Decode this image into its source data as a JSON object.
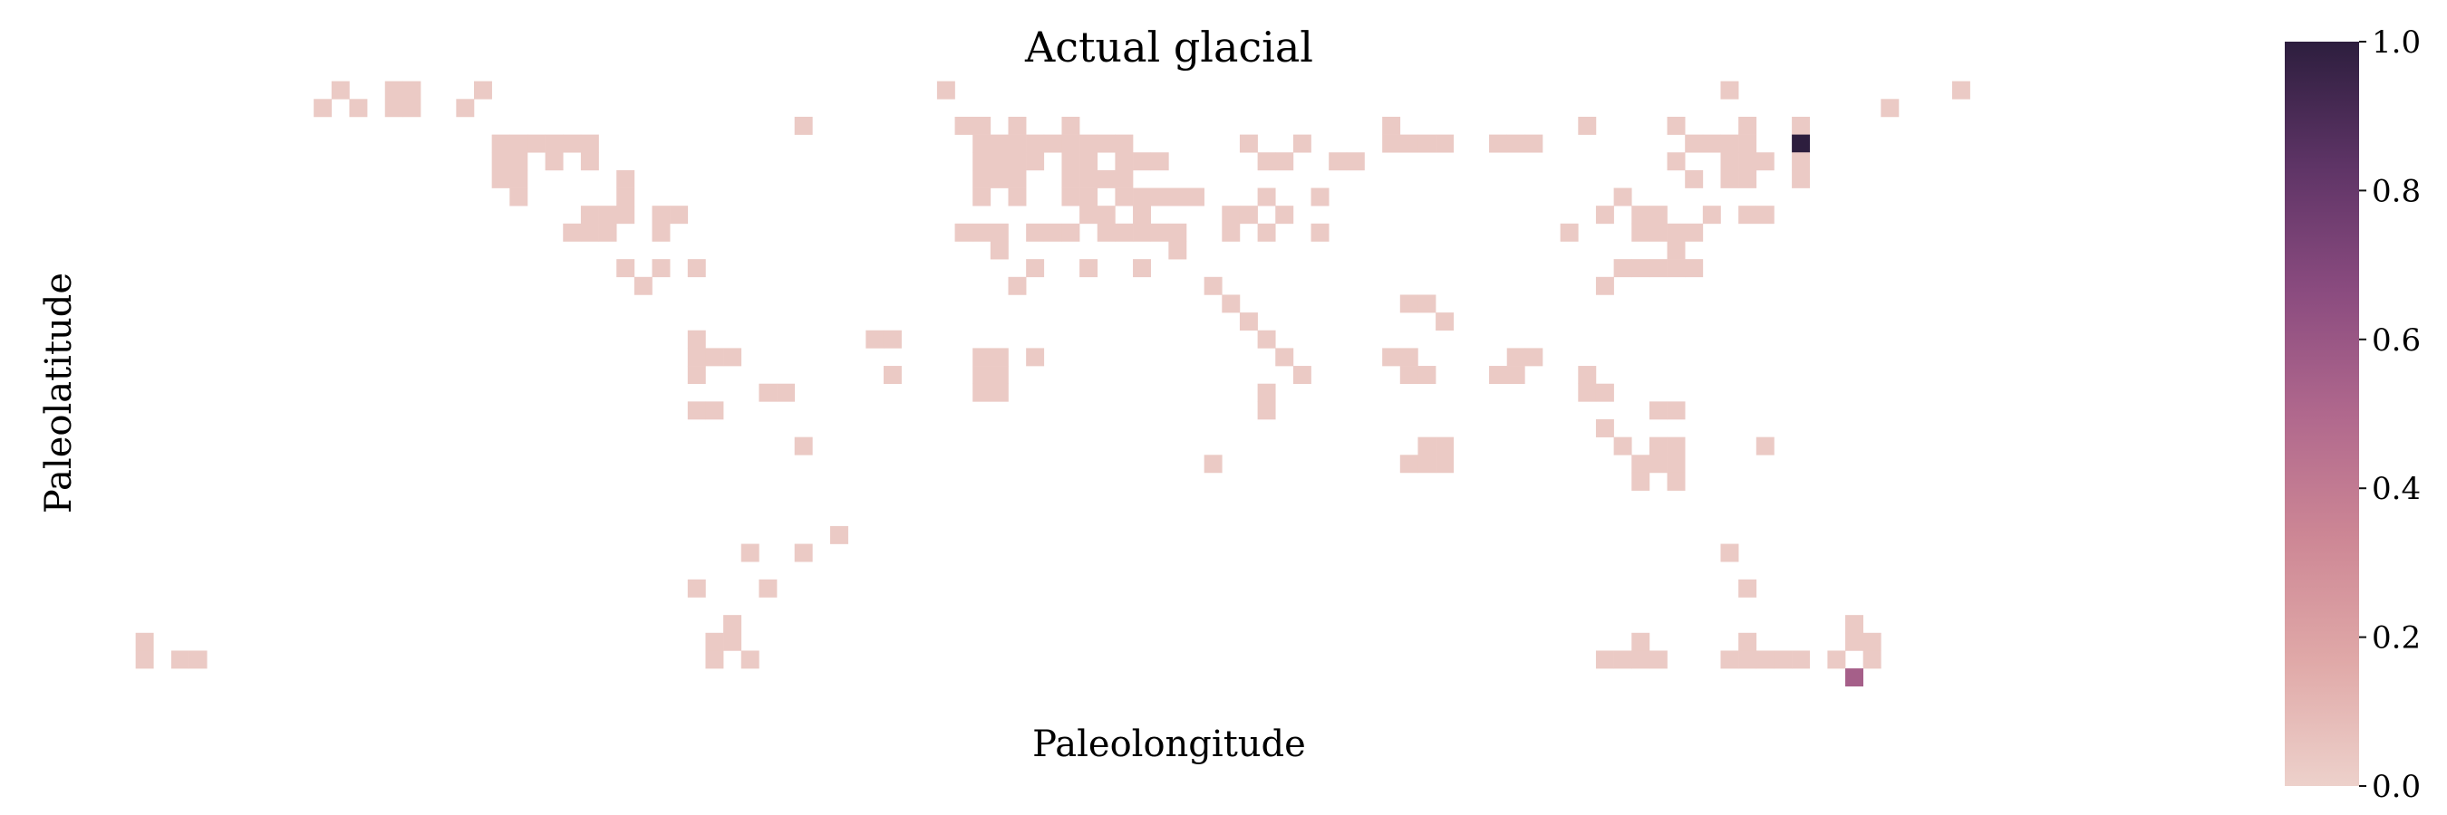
{
  "chart_data": {
    "type": "heatmap",
    "title": "Actual glacial",
    "xlabel": "Paleolongitude",
    "ylabel": "Paleolatitude",
    "n_cols": 120,
    "n_rows": 36,
    "colorbar": {
      "min": 0.0,
      "max": 1.0,
      "ticks": [
        "0.0",
        "0.2",
        "0.4",
        "0.6",
        "0.8",
        "1.0"
      ],
      "colors": [
        "#edd1cb",
        "#e0a9a8",
        "#cd8795",
        "#b0688d",
        "#8a4b7f",
        "#5e3466",
        "#2d1e3e"
      ]
    },
    "cells": [
      [
        1,
        12,
        0.03
      ],
      [
        1,
        15,
        0.03
      ],
      [
        1,
        16,
        0.03
      ],
      [
        1,
        20,
        0.03
      ],
      [
        1,
        46,
        0.03
      ],
      [
        1,
        90,
        0.03
      ],
      [
        1,
        103,
        0.03
      ],
      [
        2,
        11,
        0.03
      ],
      [
        2,
        13,
        0.03
      ],
      [
        2,
        15,
        0.03
      ],
      [
        2,
        16,
        0.03
      ],
      [
        2,
        19,
        0.03
      ],
      [
        2,
        99,
        0.03
      ],
      [
        3,
        38,
        0.03
      ],
      [
        3,
        47,
        0.03
      ],
      [
        3,
        48,
        0.03
      ],
      [
        3,
        50,
        0.03
      ],
      [
        3,
        53,
        0.03
      ],
      [
        3,
        71,
        0.03
      ],
      [
        3,
        82,
        0.03
      ],
      [
        3,
        87,
        0.03
      ],
      [
        3,
        91,
        0.03
      ],
      [
        3,
        94,
        0.03
      ],
      [
        4,
        21,
        0.03
      ],
      [
        4,
        22,
        0.03
      ],
      [
        4,
        23,
        0.03
      ],
      [
        4,
        24,
        0.03
      ],
      [
        4,
        25,
        0.03
      ],
      [
        4,
        26,
        0.03
      ],
      [
        4,
        48,
        0.03
      ],
      [
        4,
        49,
        0.03
      ],
      [
        4,
        50,
        0.03
      ],
      [
        4,
        51,
        0.03
      ],
      [
        4,
        52,
        0.03
      ],
      [
        4,
        53,
        0.03
      ],
      [
        4,
        54,
        0.03
      ],
      [
        4,
        55,
        0.03
      ],
      [
        4,
        56,
        0.03
      ],
      [
        4,
        63,
        0.03
      ],
      [
        4,
        66,
        0.03
      ],
      [
        4,
        71,
        0.03
      ],
      [
        4,
        72,
        0.03
      ],
      [
        4,
        73,
        0.03
      ],
      [
        4,
        74,
        0.03
      ],
      [
        4,
        77,
        0.03
      ],
      [
        4,
        78,
        0.03
      ],
      [
        4,
        79,
        0.03
      ],
      [
        4,
        88,
        0.03
      ],
      [
        4,
        89,
        0.03
      ],
      [
        4,
        90,
        0.03
      ],
      [
        4,
        91,
        0.03
      ],
      [
        4,
        94,
        1.0
      ],
      [
        5,
        21,
        0.03
      ],
      [
        5,
        22,
        0.03
      ],
      [
        5,
        24,
        0.03
      ],
      [
        5,
        26,
        0.03
      ],
      [
        5,
        48,
        0.03
      ],
      [
        5,
        49,
        0.03
      ],
      [
        5,
        50,
        0.03
      ],
      [
        5,
        51,
        0.03
      ],
      [
        5,
        53,
        0.03
      ],
      [
        5,
        54,
        0.03
      ],
      [
        5,
        56,
        0.03
      ],
      [
        5,
        57,
        0.03
      ],
      [
        5,
        58,
        0.03
      ],
      [
        5,
        64,
        0.03
      ],
      [
        5,
        65,
        0.03
      ],
      [
        5,
        68,
        0.03
      ],
      [
        5,
        69,
        0.03
      ],
      [
        5,
        87,
        0.03
      ],
      [
        5,
        90,
        0.03
      ],
      [
        5,
        91,
        0.03
      ],
      [
        5,
        92,
        0.03
      ],
      [
        5,
        94,
        0.03
      ],
      [
        6,
        21,
        0.03
      ],
      [
        6,
        22,
        0.03
      ],
      [
        6,
        28,
        0.03
      ],
      [
        6,
        48,
        0.03
      ],
      [
        6,
        49,
        0.03
      ],
      [
        6,
        50,
        0.03
      ],
      [
        6,
        53,
        0.03
      ],
      [
        6,
        54,
        0.03
      ],
      [
        6,
        55,
        0.03
      ],
      [
        6,
        56,
        0.03
      ],
      [
        6,
        88,
        0.03
      ],
      [
        6,
        90,
        0.03
      ],
      [
        6,
        91,
        0.03
      ],
      [
        6,
        94,
        0.03
      ],
      [
        7,
        22,
        0.03
      ],
      [
        7,
        28,
        0.03
      ],
      [
        7,
        48,
        0.03
      ],
      [
        7,
        50,
        0.03
      ],
      [
        7,
        53,
        0.03
      ],
      [
        7,
        54,
        0.03
      ],
      [
        7,
        56,
        0.03
      ],
      [
        7,
        57,
        0.03
      ],
      [
        7,
        58,
        0.03
      ],
      [
        7,
        59,
        0.03
      ],
      [
        7,
        60,
        0.03
      ],
      [
        7,
        64,
        0.03
      ],
      [
        7,
        67,
        0.03
      ],
      [
        7,
        84,
        0.03
      ],
      [
        8,
        26,
        0.03
      ],
      [
        8,
        27,
        0.03
      ],
      [
        8,
        28,
        0.03
      ],
      [
        8,
        30,
        0.03
      ],
      [
        8,
        31,
        0.03
      ],
      [
        8,
        54,
        0.03
      ],
      [
        8,
        55,
        0.03
      ],
      [
        8,
        57,
        0.03
      ],
      [
        8,
        62,
        0.03
      ],
      [
        8,
        63,
        0.03
      ],
      [
        8,
        65,
        0.03
      ],
      [
        8,
        83,
        0.03
      ],
      [
        8,
        85,
        0.03
      ],
      [
        8,
        86,
        0.03
      ],
      [
        8,
        89,
        0.03
      ],
      [
        8,
        91,
        0.03
      ],
      [
        8,
        92,
        0.03
      ],
      [
        9,
        25,
        0.03
      ],
      [
        9,
        26,
        0.03
      ],
      [
        9,
        27,
        0.03
      ],
      [
        9,
        30,
        0.03
      ],
      [
        9,
        47,
        0.03
      ],
      [
        9,
        48,
        0.03
      ],
      [
        9,
        49,
        0.03
      ],
      [
        9,
        51,
        0.03
      ],
      [
        9,
        52,
        0.03
      ],
      [
        9,
        53,
        0.03
      ],
      [
        9,
        55,
        0.03
      ],
      [
        9,
        56,
        0.03
      ],
      [
        9,
        57,
        0.03
      ],
      [
        9,
        58,
        0.03
      ],
      [
        9,
        59,
        0.03
      ],
      [
        9,
        62,
        0.03
      ],
      [
        9,
        64,
        0.03
      ],
      [
        9,
        67,
        0.03
      ],
      [
        9,
        81,
        0.03
      ],
      [
        9,
        85,
        0.03
      ],
      [
        9,
        86,
        0.03
      ],
      [
        9,
        87,
        0.03
      ],
      [
        9,
        88,
        0.03
      ],
      [
        10,
        49,
        0.03
      ],
      [
        10,
        59,
        0.03
      ],
      [
        10,
        87,
        0.03
      ],
      [
        11,
        28,
        0.03
      ],
      [
        11,
        30,
        0.03
      ],
      [
        11,
        32,
        0.03
      ],
      [
        11,
        51,
        0.03
      ],
      [
        11,
        54,
        0.03
      ],
      [
        11,
        57,
        0.03
      ],
      [
        11,
        84,
        0.03
      ],
      [
        11,
        85,
        0.03
      ],
      [
        11,
        86,
        0.03
      ],
      [
        11,
        87,
        0.03
      ],
      [
        11,
        88,
        0.03
      ],
      [
        12,
        29,
        0.03
      ],
      [
        12,
        50,
        0.03
      ],
      [
        12,
        61,
        0.03
      ],
      [
        12,
        83,
        0.03
      ],
      [
        13,
        62,
        0.03
      ],
      [
        13,
        72,
        0.03
      ],
      [
        13,
        73,
        0.03
      ],
      [
        14,
        63,
        0.03
      ],
      [
        14,
        74,
        0.03
      ],
      [
        15,
        32,
        0.03
      ],
      [
        15,
        42,
        0.03
      ],
      [
        15,
        43,
        0.03
      ],
      [
        15,
        64,
        0.03
      ],
      [
        16,
        32,
        0.03
      ],
      [
        16,
        33,
        0.03
      ],
      [
        16,
        34,
        0.03
      ],
      [
        16,
        48,
        0.03
      ],
      [
        16,
        49,
        0.03
      ],
      [
        16,
        51,
        0.03
      ],
      [
        16,
        65,
        0.03
      ],
      [
        16,
        71,
        0.03
      ],
      [
        16,
        72,
        0.03
      ],
      [
        16,
        78,
        0.03
      ],
      [
        16,
        79,
        0.03
      ],
      [
        17,
        32,
        0.03
      ],
      [
        17,
        43,
        0.03
      ],
      [
        17,
        48,
        0.03
      ],
      [
        17,
        49,
        0.03
      ],
      [
        17,
        66,
        0.03
      ],
      [
        17,
        72,
        0.03
      ],
      [
        17,
        73,
        0.03
      ],
      [
        17,
        77,
        0.03
      ],
      [
        17,
        78,
        0.03
      ],
      [
        17,
        82,
        0.03
      ],
      [
        18,
        36,
        0.03
      ],
      [
        18,
        37,
        0.03
      ],
      [
        18,
        48,
        0.03
      ],
      [
        18,
        49,
        0.03
      ],
      [
        18,
        64,
        0.03
      ],
      [
        18,
        82,
        0.03
      ],
      [
        18,
        83,
        0.03
      ],
      [
        19,
        32,
        0.03
      ],
      [
        19,
        33,
        0.03
      ],
      [
        19,
        64,
        0.03
      ],
      [
        19,
        86,
        0.03
      ],
      [
        19,
        87,
        0.03
      ],
      [
        20,
        83,
        0.03
      ],
      [
        21,
        38,
        0.03
      ],
      [
        21,
        73,
        0.03
      ],
      [
        21,
        74,
        0.03
      ],
      [
        21,
        84,
        0.03
      ],
      [
        21,
        86,
        0.03
      ],
      [
        21,
        87,
        0.03
      ],
      [
        21,
        92,
        0.03
      ],
      [
        22,
        61,
        0.03
      ],
      [
        22,
        72,
        0.03
      ],
      [
        22,
        73,
        0.03
      ],
      [
        22,
        74,
        0.03
      ],
      [
        22,
        85,
        0.03
      ],
      [
        22,
        86,
        0.03
      ],
      [
        22,
        87,
        0.03
      ],
      [
        23,
        85,
        0.03
      ],
      [
        23,
        87,
        0.03
      ],
      [
        26,
        40,
        0.03
      ],
      [
        27,
        35,
        0.03
      ],
      [
        27,
        38,
        0.03
      ],
      [
        27,
        90,
        0.03
      ],
      [
        29,
        32,
        0.03
      ],
      [
        29,
        36,
        0.03
      ],
      [
        29,
        91,
        0.03
      ],
      [
        31,
        34,
        0.03
      ],
      [
        31,
        97,
        0.03
      ],
      [
        32,
        1,
        0.03
      ],
      [
        32,
        33,
        0.03
      ],
      [
        32,
        34,
        0.03
      ],
      [
        32,
        85,
        0.03
      ],
      [
        32,
        91,
        0.03
      ],
      [
        32,
        97,
        0.03
      ],
      [
        32,
        98,
        0.03
      ],
      [
        33,
        1,
        0.03
      ],
      [
        33,
        3,
        0.03
      ],
      [
        33,
        4,
        0.03
      ],
      [
        33,
        33,
        0.03
      ],
      [
        33,
        35,
        0.03
      ],
      [
        33,
        83,
        0.03
      ],
      [
        33,
        84,
        0.03
      ],
      [
        33,
        85,
        0.03
      ],
      [
        33,
        86,
        0.03
      ],
      [
        33,
        90,
        0.03
      ],
      [
        33,
        91,
        0.03
      ],
      [
        33,
        92,
        0.03
      ],
      [
        33,
        93,
        0.03
      ],
      [
        33,
        94,
        0.03
      ],
      [
        33,
        96,
        0.03
      ],
      [
        33,
        98,
        0.03
      ],
      [
        34,
        97,
        0.55
      ]
    ]
  }
}
